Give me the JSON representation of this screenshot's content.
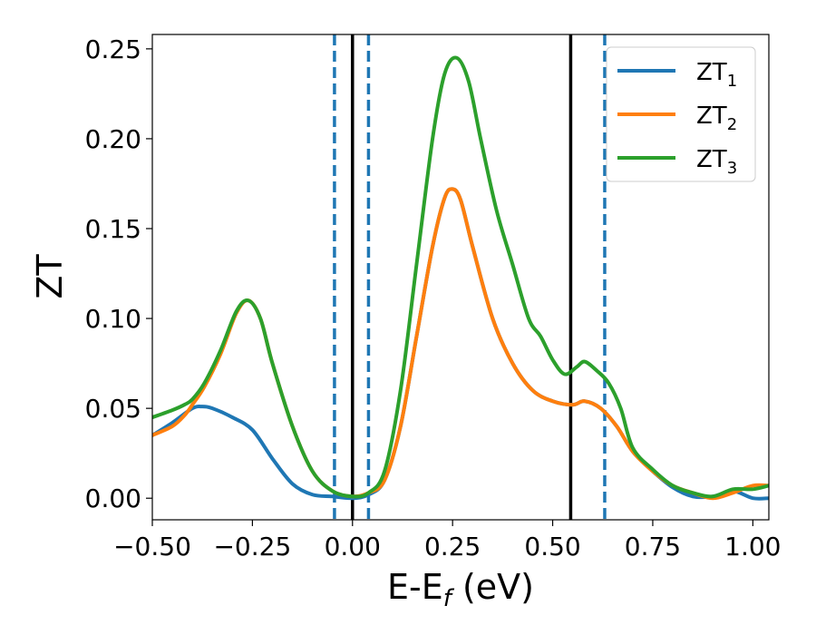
{
  "chart_data": {
    "type": "line",
    "title": "",
    "xlabel": {
      "main": "E-E",
      "sub": "f",
      "unit": " (eV)"
    },
    "ylabel": "ZT",
    "xlim": [
      -0.5,
      1.04
    ],
    "ylim": [
      -0.012,
      0.258
    ],
    "xticks": [
      -0.5,
      -0.25,
      0.0,
      0.25,
      0.5,
      0.75,
      1.0
    ],
    "xtick_labels": [
      "−0.50",
      "−0.25",
      "0.00",
      "0.25",
      "0.50",
      "0.75",
      "1.00"
    ],
    "yticks": [
      0.0,
      0.05,
      0.1,
      0.15,
      0.2,
      0.25
    ],
    "ytick_labels": [
      "0.00",
      "0.05",
      "0.10",
      "0.15",
      "0.20",
      "0.25"
    ],
    "grid": false,
    "legend_position": "top-right",
    "vlines": [
      {
        "x": 0.0,
        "style": "solid",
        "color": "#000000"
      },
      {
        "x": 0.545,
        "style": "solid",
        "color": "#000000"
      },
      {
        "x": -0.045,
        "style": "dashed",
        "color": "#1f77b4"
      },
      {
        "x": 0.04,
        "style": "dashed",
        "color": "#1f77b4"
      },
      {
        "x": 0.63,
        "style": "dashed",
        "color": "#1f77b4"
      }
    ],
    "series": [
      {
        "name_main": "ZT",
        "name_sub": "1",
        "color": "#1f77b4",
        "points": [
          [
            -0.5,
            0.035
          ],
          [
            -0.45,
            0.042
          ],
          [
            -0.4,
            0.05
          ],
          [
            -0.375,
            0.051
          ],
          [
            -0.35,
            0.05
          ],
          [
            -0.3,
            0.045
          ],
          [
            -0.25,
            0.038
          ],
          [
            -0.2,
            0.022
          ],
          [
            -0.15,
            0.008
          ],
          [
            -0.1,
            0.002
          ],
          [
            -0.05,
            0.001
          ],
          [
            0.0,
            0.0
          ],
          [
            0.04,
            0.002
          ],
          [
            0.08,
            0.01
          ],
          [
            0.12,
            0.04
          ],
          [
            0.16,
            0.09
          ],
          [
            0.2,
            0.14
          ],
          [
            0.23,
            0.167
          ],
          [
            0.25,
            0.172
          ],
          [
            0.27,
            0.166
          ],
          [
            0.3,
            0.14
          ],
          [
            0.35,
            0.1
          ],
          [
            0.4,
            0.075
          ],
          [
            0.45,
            0.06
          ],
          [
            0.5,
            0.054
          ],
          [
            0.55,
            0.052
          ],
          [
            0.58,
            0.054
          ],
          [
            0.62,
            0.05
          ],
          [
            0.66,
            0.04
          ],
          [
            0.7,
            0.026
          ],
          [
            0.75,
            0.015
          ],
          [
            0.8,
            0.006
          ],
          [
            0.85,
            0.001
          ],
          [
            0.9,
            0.001
          ],
          [
            0.95,
            0.004
          ],
          [
            1.0,
            0.0
          ],
          [
            1.04,
            0.0
          ]
        ]
      },
      {
        "name_main": "ZT",
        "name_sub": "2",
        "color": "#ff7f0e",
        "points": [
          [
            -0.5,
            0.035
          ],
          [
            -0.45,
            0.04
          ],
          [
            -0.42,
            0.046
          ],
          [
            -0.4,
            0.052
          ],
          [
            -0.37,
            0.062
          ],
          [
            -0.33,
            0.08
          ],
          [
            -0.29,
            0.103
          ],
          [
            -0.26,
            0.11
          ],
          [
            -0.23,
            0.1
          ],
          [
            -0.2,
            0.075
          ],
          [
            -0.15,
            0.04
          ],
          [
            -0.1,
            0.015
          ],
          [
            -0.05,
            0.004
          ],
          [
            0.0,
            0.001
          ],
          [
            0.04,
            0.003
          ],
          [
            0.08,
            0.01
          ],
          [
            0.12,
            0.04
          ],
          [
            0.16,
            0.09
          ],
          [
            0.2,
            0.14
          ],
          [
            0.23,
            0.167
          ],
          [
            0.25,
            0.172
          ],
          [
            0.27,
            0.166
          ],
          [
            0.3,
            0.14
          ],
          [
            0.35,
            0.1
          ],
          [
            0.4,
            0.075
          ],
          [
            0.45,
            0.06
          ],
          [
            0.5,
            0.054
          ],
          [
            0.55,
            0.052
          ],
          [
            0.58,
            0.054
          ],
          [
            0.62,
            0.05
          ],
          [
            0.66,
            0.04
          ],
          [
            0.7,
            0.026
          ],
          [
            0.75,
            0.015
          ],
          [
            0.8,
            0.007
          ],
          [
            0.85,
            0.003
          ],
          [
            0.9,
            0.0
          ],
          [
            0.95,
            0.003
          ],
          [
            1.0,
            0.007
          ],
          [
            1.04,
            0.007
          ]
        ]
      },
      {
        "name_main": "ZT",
        "name_sub": "3",
        "color": "#2ca02c",
        "points": [
          [
            -0.5,
            0.045
          ],
          [
            -0.45,
            0.049
          ],
          [
            -0.42,
            0.052
          ],
          [
            -0.4,
            0.055
          ],
          [
            -0.37,
            0.064
          ],
          [
            -0.33,
            0.082
          ],
          [
            -0.29,
            0.104
          ],
          [
            -0.26,
            0.11
          ],
          [
            -0.23,
            0.1
          ],
          [
            -0.2,
            0.075
          ],
          [
            -0.15,
            0.04
          ],
          [
            -0.1,
            0.015
          ],
          [
            -0.05,
            0.004
          ],
          [
            0.0,
            0.001
          ],
          [
            0.04,
            0.003
          ],
          [
            0.08,
            0.015
          ],
          [
            0.12,
            0.06
          ],
          [
            0.16,
            0.13
          ],
          [
            0.2,
            0.2
          ],
          [
            0.23,
            0.236
          ],
          [
            0.26,
            0.245
          ],
          [
            0.29,
            0.232
          ],
          [
            0.32,
            0.2
          ],
          [
            0.36,
            0.16
          ],
          [
            0.4,
            0.13
          ],
          [
            0.44,
            0.1
          ],
          [
            0.47,
            0.09
          ],
          [
            0.5,
            0.077
          ],
          [
            0.53,
            0.069
          ],
          [
            0.56,
            0.073
          ],
          [
            0.58,
            0.076
          ],
          [
            0.61,
            0.071
          ],
          [
            0.64,
            0.064
          ],
          [
            0.67,
            0.05
          ],
          [
            0.7,
            0.028
          ],
          [
            0.75,
            0.016
          ],
          [
            0.8,
            0.007
          ],
          [
            0.85,
            0.003
          ],
          [
            0.9,
            0.001
          ],
          [
            0.95,
            0.005
          ],
          [
            1.0,
            0.005
          ],
          [
            1.04,
            0.007
          ]
        ]
      }
    ]
  }
}
